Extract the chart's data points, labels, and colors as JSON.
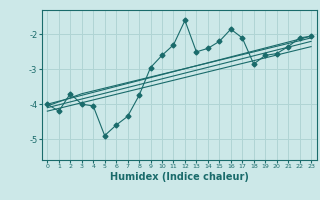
{
  "xlabel": "Humidex (Indice chaleur)",
  "bg_color": "#cce8e8",
  "grid_color": "#b0d4d4",
  "line_color": "#1a6b6b",
  "xlim": [
    -0.5,
    23.5
  ],
  "ylim": [
    -5.6,
    -1.3
  ],
  "yticks": [
    -5,
    -4,
    -3,
    -2
  ],
  "xticks": [
    0,
    1,
    2,
    3,
    4,
    5,
    6,
    7,
    8,
    9,
    10,
    11,
    12,
    13,
    14,
    15,
    16,
    17,
    18,
    19,
    20,
    21,
    22,
    23
  ],
  "zigzag_x": [
    0,
    1,
    2,
    3,
    4,
    5,
    6,
    7,
    8,
    9,
    10,
    11,
    12,
    13,
    14,
    15,
    16,
    17,
    18,
    19,
    20,
    21,
    22,
    23
  ],
  "zigzag_y": [
    -4.0,
    -4.2,
    -3.7,
    -4.0,
    -4.05,
    -4.9,
    -4.6,
    -4.35,
    -3.75,
    -2.95,
    -2.6,
    -2.3,
    -1.6,
    -2.5,
    -2.4,
    -2.2,
    -1.85,
    -2.1,
    -2.85,
    -2.6,
    -2.55,
    -2.35,
    -2.1,
    -2.05
  ],
  "line1_x": [
    0,
    23
  ],
  "line1_y": [
    -4.0,
    -2.05
  ],
  "line2_x": [
    0,
    23
  ],
  "line2_y": [
    -4.1,
    -2.2
  ],
  "line3_x": [
    0,
    23
  ],
  "line3_y": [
    -4.2,
    -2.35
  ],
  "line4_x": [
    0,
    3,
    23
  ],
  "line4_y": [
    -4.05,
    -3.7,
    -2.1
  ]
}
